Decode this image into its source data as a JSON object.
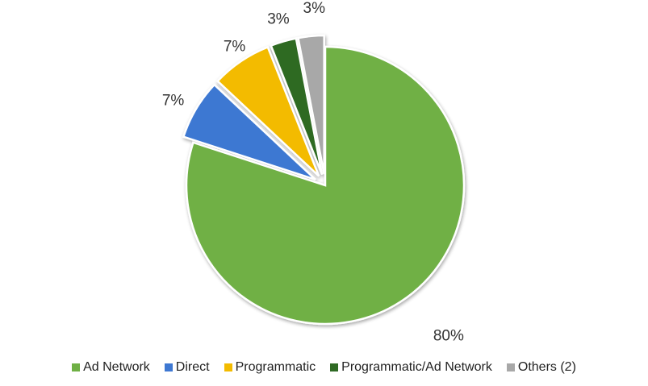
{
  "chart_data": {
    "type": "pie",
    "categories": [
      "Ad Network",
      "Direct",
      "Programmatic",
      "Programmatic/Ad Network",
      "Others (2)"
    ],
    "values": [
      80,
      7,
      7,
      3,
      3
    ],
    "data_labels": [
      "80%",
      "7%",
      "7%",
      "3%",
      "3%"
    ],
    "colors": [
      "#6fb045",
      "#3e78d2",
      "#f3bb00",
      "#2f6a24",
      "#a8a8a8"
    ],
    "exploded": [
      false,
      true,
      true,
      true,
      true
    ],
    "start_angle": "12 o'clock, clockwise",
    "legend_position": "bottom",
    "title": ""
  }
}
